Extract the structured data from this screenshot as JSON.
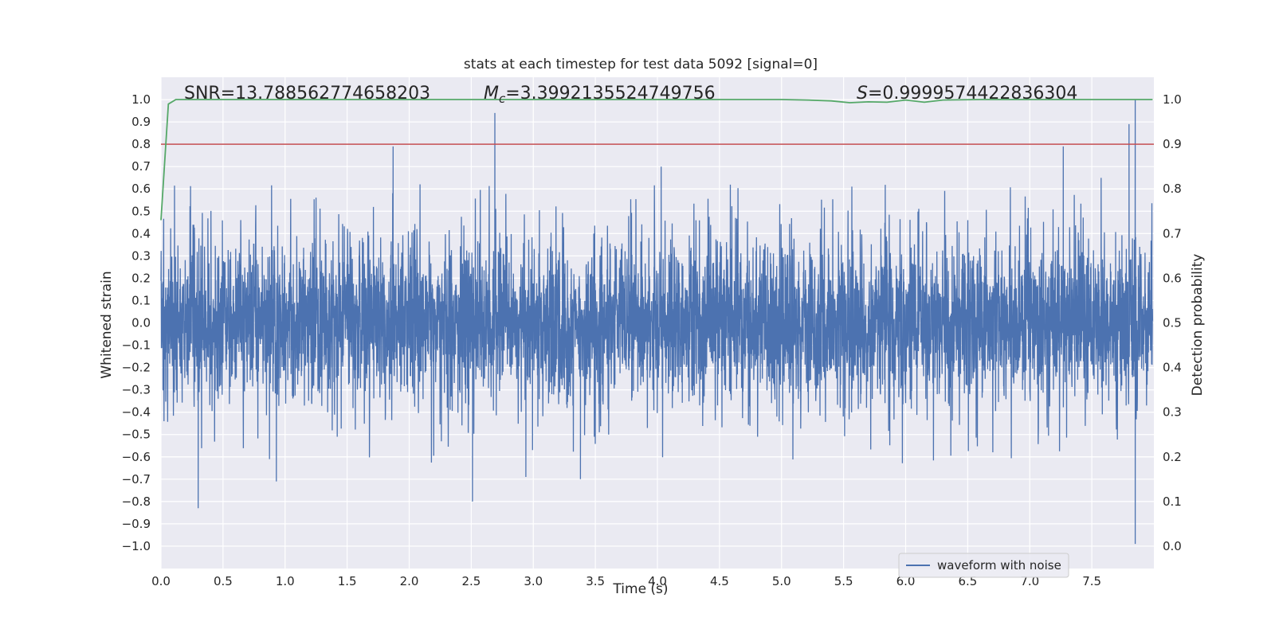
{
  "chart_data": {
    "type": "line",
    "title": "stats at each timestep for test data 5092 [signal=0]",
    "xlabel": "Time (s)",
    "ylabel": "Whitened strain",
    "y2label": "Detection probability",
    "xlim": [
      0.0,
      8.0
    ],
    "ylim": [
      -1.1,
      1.1
    ],
    "y2lim": [
      -0.05,
      1.05
    ],
    "xticks": [
      "0.0",
      "0.5",
      "1.0",
      "1.5",
      "2.0",
      "2.5",
      "3.0",
      "3.5",
      "4.0",
      "4.5",
      "5.0",
      "5.5",
      "6.0",
      "6.5",
      "7.0",
      "7.5"
    ],
    "xtick_values": [
      0.0,
      0.5,
      1.0,
      1.5,
      2.0,
      2.5,
      3.0,
      3.5,
      4.0,
      4.5,
      5.0,
      5.5,
      6.0,
      6.5,
      7.0,
      7.5
    ],
    "yticks": [
      "1.0",
      "0.9",
      "0.8",
      "0.7",
      "0.6",
      "0.5",
      "0.4",
      "0.3",
      "0.2",
      "0.1",
      "0.0",
      "−0.1",
      "−0.2",
      "−0.3",
      "−0.4",
      "−0.5",
      "−0.6",
      "−0.7",
      "−0.8",
      "−0.9",
      "−1.0"
    ],
    "ytick_values": [
      1.0,
      0.9,
      0.8,
      0.7,
      0.6,
      0.5,
      0.4,
      0.3,
      0.2,
      0.1,
      0.0,
      -0.1,
      -0.2,
      -0.3,
      -0.4,
      -0.5,
      -0.6,
      -0.7,
      -0.8,
      -0.9,
      -1.0
    ],
    "y2ticks": [
      "1.0",
      "0.9",
      "0.8",
      "0.7",
      "0.6",
      "0.5",
      "0.4",
      "0.3",
      "0.2",
      "0.1",
      "0.0"
    ],
    "y2tick_values": [
      1.0,
      0.9,
      0.8,
      0.7,
      0.6,
      0.5,
      0.4,
      0.3,
      0.2,
      0.1,
      0.0
    ],
    "grid": true,
    "annotations": {
      "snr": "SNR=13.788562774658203",
      "mc_symbol": "M",
      "mc_sub": "c",
      "mc_value": "=3.3992135524749756",
      "s_symbol": "S",
      "s_value": "=0.9999574422836304"
    },
    "threshold_line": {
      "y2": 0.9,
      "color": "#c44e52"
    },
    "series": [
      {
        "name": "waveform with noise",
        "axis": "left",
        "color": "#4c72b0",
        "seed": 5092,
        "duration": 7.99,
        "spikes": [
          {
            "x": 2.69,
            "y": 0.94
          },
          {
            "x": 7.85,
            "y": 1.0
          },
          {
            "x": 7.85,
            "y": -0.99
          },
          {
            "x": 1.87,
            "y": 0.79
          },
          {
            "x": 0.3,
            "y": -0.83
          },
          {
            "x": 2.51,
            "y": -0.8
          },
          {
            "x": 7.27,
            "y": 0.79
          },
          {
            "x": 7.8,
            "y": 0.89
          },
          {
            "x": 3.38,
            "y": -0.7
          },
          {
            "x": 0.93,
            "y": -0.71
          },
          {
            "x": 4.03,
            "y": 0.7
          },
          {
            "x": 2.94,
            "y": -0.69
          }
        ]
      },
      {
        "name": "detection probability",
        "axis": "right",
        "color": "#55a868",
        "x": [
          0.0,
          0.06,
          0.12,
          0.5,
          1.0,
          2.0,
          3.0,
          4.0,
          5.0,
          5.2,
          5.4,
          5.55,
          5.7,
          5.85,
          6.0,
          6.15,
          6.3,
          6.6,
          7.0,
          7.5,
          7.99
        ],
        "y": [
          0.73,
          0.99,
          1.0,
          1.0,
          1.0,
          1.0,
          1.0,
          1.0,
          1.0,
          0.999,
          0.997,
          0.993,
          0.995,
          0.994,
          0.999,
          0.994,
          0.999,
          1.0,
          1.0,
          1.0,
          1.0
        ]
      }
    ],
    "legend": {
      "label": "waveform with noise",
      "position": "lower-right"
    }
  }
}
